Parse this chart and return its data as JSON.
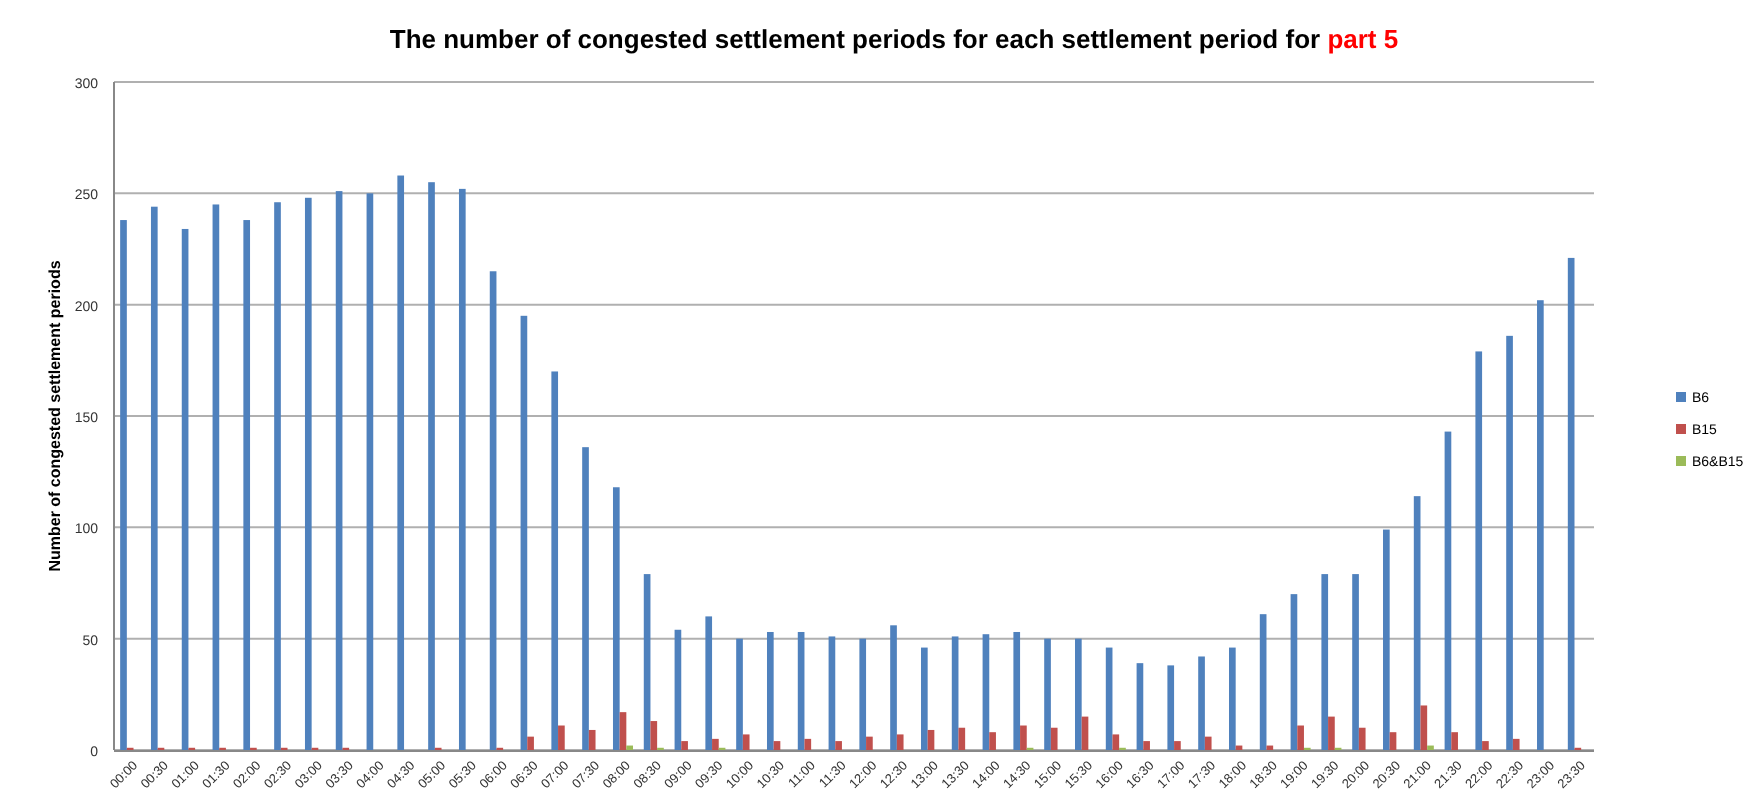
{
  "chart_data": {
    "type": "bar",
    "title": "The number of congested settlement periods for each settlement period for part 5",
    "ylabel": "Number of congested settlement periods",
    "categories": [
      "00:00",
      "00:30",
      "01:00",
      "01:30",
      "02:00",
      "02:30",
      "03:00",
      "03:30",
      "04:00",
      "04:30",
      "05:00",
      "05:30",
      "06:00",
      "06:30",
      "07:00",
      "07:30",
      "08:00",
      "08:30",
      "09:00",
      "09:30",
      "10:00",
      "10:30",
      "11:00",
      "11:30",
      "12:00",
      "12:30",
      "13:00",
      "13:30",
      "14:00",
      "14:30",
      "15:00",
      "15:30",
      "16:00",
      "16:30",
      "17:00",
      "17:30",
      "18:00",
      "18:30",
      "19:00",
      "19:30",
      "20:00",
      "20:30",
      "21:00",
      "21:30",
      "22:00",
      "22:30",
      "23:00",
      "23:30"
    ],
    "series": [
      {
        "name": "B6",
        "color": "#4f81bd",
        "values": [
          238,
          244,
          234,
          245,
          238,
          246,
          248,
          251,
          250,
          258,
          255,
          252,
          215,
          195,
          170,
          136,
          118,
          79,
          54,
          60,
          50,
          53,
          53,
          51,
          50,
          56,
          46,
          51,
          52,
          53,
          50,
          50,
          46,
          39,
          38,
          42,
          46,
          61,
          70,
          79,
          79,
          99,
          114,
          143,
          179,
          186,
          202,
          221
        ]
      },
      {
        "name": "B15",
        "color": "#c0504d",
        "values": [
          1,
          1,
          1,
          1,
          1,
          1,
          1,
          1,
          0,
          0,
          1,
          0,
          1,
          6,
          11,
          9,
          17,
          13,
          4,
          5,
          7,
          4,
          5,
          4,
          6,
          7,
          9,
          10,
          8,
          11,
          10,
          15,
          7,
          4,
          4,
          6,
          2,
          2,
          11,
          15,
          10,
          8,
          20,
          8,
          4,
          5,
          0,
          1
        ]
      },
      {
        "name": "B6&B15",
        "color": "#9bbb59",
        "values": [
          0,
          0,
          0,
          0,
          0,
          0,
          0,
          0,
          0,
          0,
          0,
          0,
          0,
          0,
          0,
          0,
          2,
          1,
          0,
          1,
          0,
          0,
          0,
          0,
          0,
          0,
          0,
          0,
          0,
          1,
          0,
          0,
          1,
          0,
          0,
          0,
          0,
          0,
          1,
          1,
          0,
          0,
          2,
          0,
          0,
          0,
          0,
          0
        ]
      }
    ],
    "ylim": [
      0,
      300
    ],
    "yticks": [
      0,
      50,
      100,
      150,
      200,
      250,
      300
    ],
    "grid": "y",
    "legend": "right"
  }
}
